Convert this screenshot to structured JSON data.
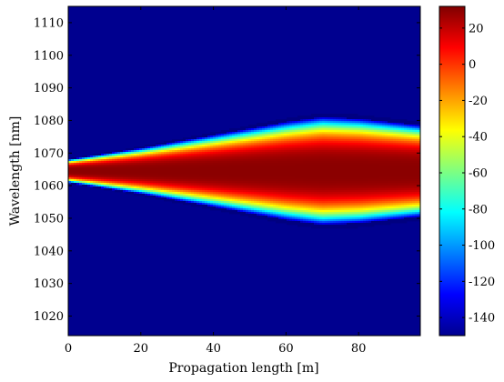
{
  "chart_data": {
    "type": "heatmap",
    "title": "",
    "xlabel": "Propagation length [m]",
    "ylabel": "Wavelength [nm]",
    "xlim": [
      0,
      97
    ],
    "ylim": [
      1014,
      1115
    ],
    "x_ticks": [
      0,
      20,
      40,
      60,
      80
    ],
    "y_ticks": [
      1020,
      1030,
      1040,
      1050,
      1060,
      1070,
      1080,
      1090,
      1100,
      1110
    ],
    "colorbar": {
      "colormap": "jet",
      "range": [
        -150,
        32
      ],
      "ticks": [
        20,
        0,
        -20,
        -40,
        -60,
        -80,
        -100,
        -120,
        -140
      ]
    },
    "grid": false,
    "background_value": -150,
    "spectral_profile": {
      "description_units": "propagation length [m] vs wavelength [nm]",
      "center_wavelength": [
        {
          "x": 0,
          "y": 1064.5
        },
        {
          "x": 20,
          "y": 1064.5
        },
        {
          "x": 40,
          "y": 1064.5
        },
        {
          "x": 60,
          "y": 1064.5
        },
        {
          "x": 80,
          "y": 1064.5
        },
        {
          "x": 97,
          "y": 1064.5
        }
      ],
      "half_width_at_-140": [
        {
          "x": 0,
          "y": 3.5
        },
        {
          "x": 20,
          "y": 7.0
        },
        {
          "x": 40,
          "y": 11.0
        },
        {
          "x": 60,
          "y": 15.0
        },
        {
          "x": 70,
          "y": 16.5
        },
        {
          "x": 80,
          "y": 16.0
        },
        {
          "x": 97,
          "y": 14.0
        }
      ],
      "peak_value": 30
    },
    "colors": {
      "background": "#00008f",
      "peak": "#800000"
    }
  }
}
